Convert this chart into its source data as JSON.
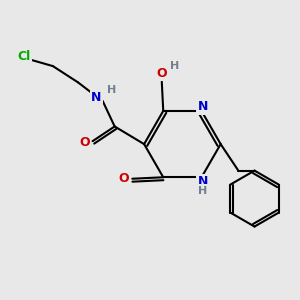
{
  "bg_color": "#e8e8e8",
  "atom_colors": {
    "C": "#000000",
    "N": "#0000cc",
    "O": "#cc0000",
    "Cl": "#00aa00",
    "H": "#708090"
  },
  "bond_color": "#000000",
  "bond_width": 1.5
}
